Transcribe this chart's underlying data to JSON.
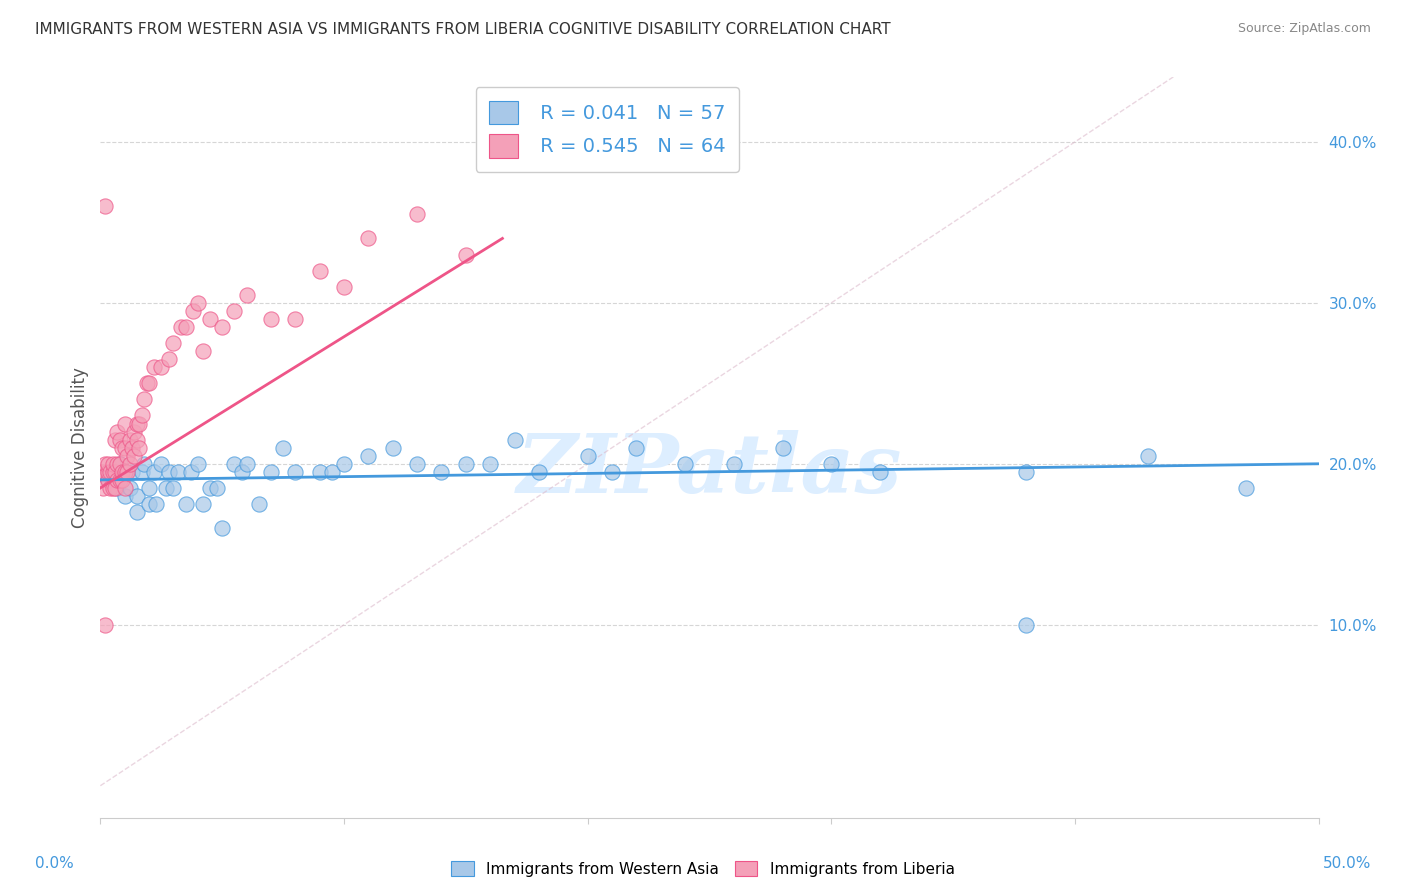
{
  "title": "IMMIGRANTS FROM WESTERN ASIA VS IMMIGRANTS FROM LIBERIA COGNITIVE DISABILITY CORRELATION CHART",
  "source": "Source: ZipAtlas.com",
  "ylabel": "Cognitive Disability",
  "yaxis_ticks": [
    0.1,
    0.2,
    0.3,
    0.4
  ],
  "yaxis_labels": [
    "10.0%",
    "20.0%",
    "30.0%",
    "40.0%"
  ],
  "xlim": [
    0.0,
    0.5
  ],
  "ylim": [
    -0.02,
    0.44
  ],
  "legend1_R": "0.041",
  "legend1_N": "57",
  "legend2_R": "0.545",
  "legend2_N": "64",
  "color_blue": "#a8c8e8",
  "color_pink": "#f4a0b8",
  "color_blue_line": "#4499dd",
  "color_pink_line": "#ee5588",
  "color_blue_text": "#4499dd",
  "watermark": "ZIPatlas",
  "western_asia_x": [
    0.003,
    0.005,
    0.007,
    0.008,
    0.01,
    0.01,
    0.012,
    0.013,
    0.015,
    0.015,
    0.017,
    0.018,
    0.02,
    0.02,
    0.022,
    0.023,
    0.025,
    0.027,
    0.028,
    0.03,
    0.032,
    0.035,
    0.037,
    0.04,
    0.042,
    0.045,
    0.048,
    0.05,
    0.055,
    0.058,
    0.06,
    0.065,
    0.07,
    0.075,
    0.08,
    0.09,
    0.095,
    0.1,
    0.11,
    0.12,
    0.13,
    0.14,
    0.15,
    0.16,
    0.17,
    0.18,
    0.2,
    0.21,
    0.22,
    0.24,
    0.26,
    0.28,
    0.3,
    0.32,
    0.38,
    0.43,
    0.47
  ],
  "western_asia_y": [
    0.19,
    0.195,
    0.185,
    0.2,
    0.18,
    0.195,
    0.185,
    0.195,
    0.17,
    0.18,
    0.195,
    0.2,
    0.175,
    0.185,
    0.195,
    0.175,
    0.2,
    0.185,
    0.195,
    0.185,
    0.195,
    0.175,
    0.195,
    0.2,
    0.175,
    0.185,
    0.185,
    0.16,
    0.2,
    0.195,
    0.2,
    0.175,
    0.195,
    0.21,
    0.195,
    0.195,
    0.195,
    0.2,
    0.205,
    0.21,
    0.2,
    0.195,
    0.2,
    0.2,
    0.215,
    0.195,
    0.205,
    0.195,
    0.21,
    0.2,
    0.2,
    0.21,
    0.2,
    0.195,
    0.195,
    0.205,
    0.185
  ],
  "western_asia_y_outlier": [
    0.1
  ],
  "western_asia_x_outlier": [
    0.38
  ],
  "liberia_x": [
    0.0,
    0.001,
    0.001,
    0.002,
    0.003,
    0.003,
    0.003,
    0.004,
    0.004,
    0.005,
    0.005,
    0.005,
    0.006,
    0.006,
    0.006,
    0.007,
    0.007,
    0.007,
    0.008,
    0.008,
    0.008,
    0.009,
    0.009,
    0.009,
    0.01,
    0.01,
    0.01,
    0.01,
    0.011,
    0.011,
    0.012,
    0.012,
    0.013,
    0.014,
    0.014,
    0.015,
    0.015,
    0.016,
    0.016,
    0.017,
    0.018,
    0.019,
    0.02,
    0.022,
    0.025,
    0.028,
    0.03,
    0.033,
    0.035,
    0.038,
    0.04,
    0.042,
    0.045,
    0.05,
    0.055,
    0.06,
    0.07,
    0.08,
    0.09,
    0.1,
    0.11,
    0.13,
    0.15,
    0.002
  ],
  "liberia_y": [
    0.195,
    0.185,
    0.195,
    0.2,
    0.19,
    0.195,
    0.2,
    0.185,
    0.195,
    0.185,
    0.195,
    0.2,
    0.185,
    0.195,
    0.215,
    0.19,
    0.2,
    0.22,
    0.19,
    0.2,
    0.215,
    0.19,
    0.195,
    0.21,
    0.185,
    0.195,
    0.21,
    0.225,
    0.195,
    0.205,
    0.2,
    0.215,
    0.21,
    0.205,
    0.22,
    0.215,
    0.225,
    0.21,
    0.225,
    0.23,
    0.24,
    0.25,
    0.25,
    0.26,
    0.26,
    0.265,
    0.275,
    0.285,
    0.285,
    0.295,
    0.3,
    0.27,
    0.29,
    0.285,
    0.295,
    0.305,
    0.29,
    0.29,
    0.32,
    0.31,
    0.34,
    0.355,
    0.33,
    0.36
  ],
  "liberia_outlier_x": [
    0.002
  ],
  "liberia_outlier_y": [
    0.1
  ],
  "liberia_high_x": [
    0.003
  ],
  "liberia_high_y": [
    0.36
  ],
  "wa_trend_x0": 0.0,
  "wa_trend_y0": 0.19,
  "wa_trend_x1": 0.5,
  "wa_trend_y1": 0.2,
  "lib_trend_x0": 0.0,
  "lib_trend_y0": 0.185,
  "lib_trend_x1": 0.165,
  "lib_trend_y1": 0.34
}
